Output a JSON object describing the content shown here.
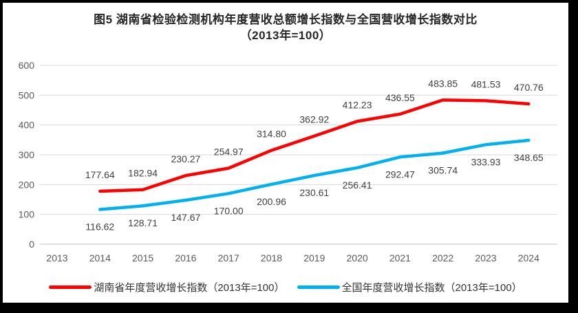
{
  "title": {
    "line1": "图5 湖南省检验检测机构年度营收总额增长指数与全国营收增长指数对比",
    "line2": "（2013年=100）"
  },
  "colors": {
    "frame": "#000000",
    "gridline": "#d9d9d9",
    "axis_baseline": "#bfbfbf",
    "axis_text": "#595959",
    "data_label_text": "#3f3f3f",
    "hunan_series": "#ff0000",
    "national_series": "#00b0f0"
  },
  "chart_data": {
    "type": "line",
    "title": "图5 湖南省检验检测机构年度营收总额增长指数与全国营收增长指数对比（2013年=100）",
    "xlabel": "",
    "ylabel": "",
    "ylim": [
      0,
      600
    ],
    "ytick_step": 100,
    "grid": true,
    "legend_position": "bottom",
    "categories": [
      "2013",
      "2014",
      "2015",
      "2016",
      "2017",
      "2018",
      "2019",
      "2020",
      "2021",
      "2022",
      "2023",
      "2024"
    ],
    "series": [
      {
        "key": "hunan",
        "name": "湖南省年度营收增长指数（2013年=100）",
        "color": "#ff0000",
        "label_position": "above",
        "values": [
          null,
          177.64,
          182.94,
          230.27,
          254.97,
          314.8,
          362.92,
          412.23,
          436.55,
          483.85,
          481.53,
          470.76
        ]
      },
      {
        "key": "national",
        "name": "全国年度营收增长指数（2013年=100）",
        "color": "#00b0f0",
        "label_position": "below",
        "values": [
          null,
          116.62,
          128.71,
          147.67,
          170.0,
          200.96,
          230.61,
          256.41,
          292.47,
          305.74,
          333.93,
          348.65
        ]
      }
    ]
  }
}
